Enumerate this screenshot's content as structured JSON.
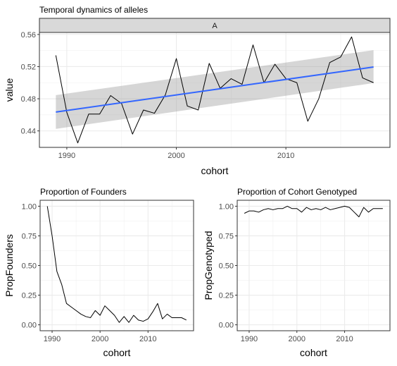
{
  "chart_data": [
    {
      "type": "line",
      "title": "Temporal dynamics of alleles",
      "facet_label": "A",
      "xlabel": "cohort",
      "ylabel": "value",
      "xlim": [
        1987.5,
        2019.5
      ],
      "ylim": [
        0.4195,
        0.5625
      ],
      "xticks": [
        1990,
        2000,
        2010
      ],
      "yticks": [
        0.44,
        0.48,
        0.52,
        0.56
      ],
      "ytick_labels": [
        "0.44",
        "0.48",
        "0.52",
        "0.56"
      ],
      "grid": true,
      "x": [
        1989,
        1990,
        1991,
        1992,
        1993,
        1994,
        1995,
        1996,
        1997,
        1998,
        1999,
        2000,
        2001,
        2002,
        2003,
        2004,
        2005,
        2006,
        2007,
        2008,
        2009,
        2010,
        2011,
        2012,
        2013,
        2014,
        2015,
        2016,
        2017,
        2018
      ],
      "series": [
        {
          "values": [
            0.534,
            0.463,
            0.425,
            0.461,
            0.461,
            0.484,
            0.474,
            0.436,
            0.466,
            0.462,
            0.485,
            0.53,
            0.471,
            0.466,
            0.524,
            0.493,
            0.505,
            0.498,
            0.547,
            0.5,
            0.523,
            0.505,
            0.5,
            0.452,
            0.48,
            0.525,
            0.532,
            0.557,
            0.506,
            0.5
          ],
          "color": "#000000"
        }
      ],
      "trend": {
        "method": "lm",
        "x": [
          1989,
          2018
        ],
        "fit": [
          0.4635,
          0.5195
        ],
        "lower": [
          0.4425,
          0.4995
        ],
        "upper": [
          0.4845,
          0.5405
        ],
        "line_color": "#3366ff",
        "band_color": "#999999"
      }
    },
    {
      "type": "line",
      "title": "Proportion of Founders",
      "xlabel": "cohort",
      "ylabel": "PropFounders",
      "xlim": [
        1987.5,
        2019.5
      ],
      "ylim": [
        -0.05,
        1.05
      ],
      "xticks": [
        1990,
        2000,
        2010
      ],
      "yticks": [
        0.0,
        0.25,
        0.5,
        0.75,
        1.0
      ],
      "ytick_labels": [
        "0.00",
        "0.25",
        "0.50",
        "0.75",
        "1.00"
      ],
      "grid": true,
      "x": [
        1989,
        1990,
        1991,
        1992,
        1993,
        1994,
        1995,
        1996,
        1997,
        1998,
        1999,
        2000,
        2001,
        2002,
        2003,
        2004,
        2005,
        2006,
        2007,
        2008,
        2009,
        2010,
        2011,
        2012,
        2013,
        2014,
        2015,
        2016,
        2017,
        2018
      ],
      "series": [
        {
          "values": [
            1.0,
            0.75,
            0.45,
            0.34,
            0.18,
            0.15,
            0.12,
            0.09,
            0.07,
            0.06,
            0.12,
            0.08,
            0.16,
            0.12,
            0.08,
            0.02,
            0.07,
            0.02,
            0.08,
            0.04,
            0.03,
            0.05,
            0.11,
            0.18,
            0.05,
            0.09,
            0.06,
            0.06,
            0.06,
            0.04
          ],
          "color": "#000000"
        }
      ]
    },
    {
      "type": "line",
      "title": "Proportion of Cohort Genotyped",
      "xlabel": "cohort",
      "ylabel": "PropGenotyped",
      "xlim": [
        1987.5,
        2019.5
      ],
      "ylim": [
        -0.05,
        1.05
      ],
      "xticks": [
        1990,
        2000,
        2010
      ],
      "yticks": [
        0.0,
        0.25,
        0.5,
        0.75,
        1.0
      ],
      "ytick_labels": [
        "0.00",
        "0.25",
        "0.50",
        "0.75",
        "1.00"
      ],
      "grid": true,
      "x": [
        1989,
        1990,
        1991,
        1992,
        1993,
        1994,
        1995,
        1996,
        1997,
        1998,
        1999,
        2000,
        2001,
        2002,
        2003,
        2004,
        2005,
        2006,
        2007,
        2008,
        2009,
        2010,
        2011,
        2012,
        2013,
        2014,
        2015,
        2016,
        2017,
        2018
      ],
      "series": [
        {
          "values": [
            0.94,
            0.96,
            0.96,
            0.95,
            0.97,
            0.98,
            0.97,
            0.98,
            0.98,
            1.0,
            0.98,
            0.98,
            0.95,
            0.99,
            0.97,
            0.98,
            0.97,
            0.99,
            0.97,
            0.98,
            0.99,
            1.0,
            0.99,
            0.95,
            0.91,
            0.99,
            0.95,
            0.98,
            0.98,
            0.98
          ],
          "color": "#000000"
        }
      ]
    }
  ]
}
